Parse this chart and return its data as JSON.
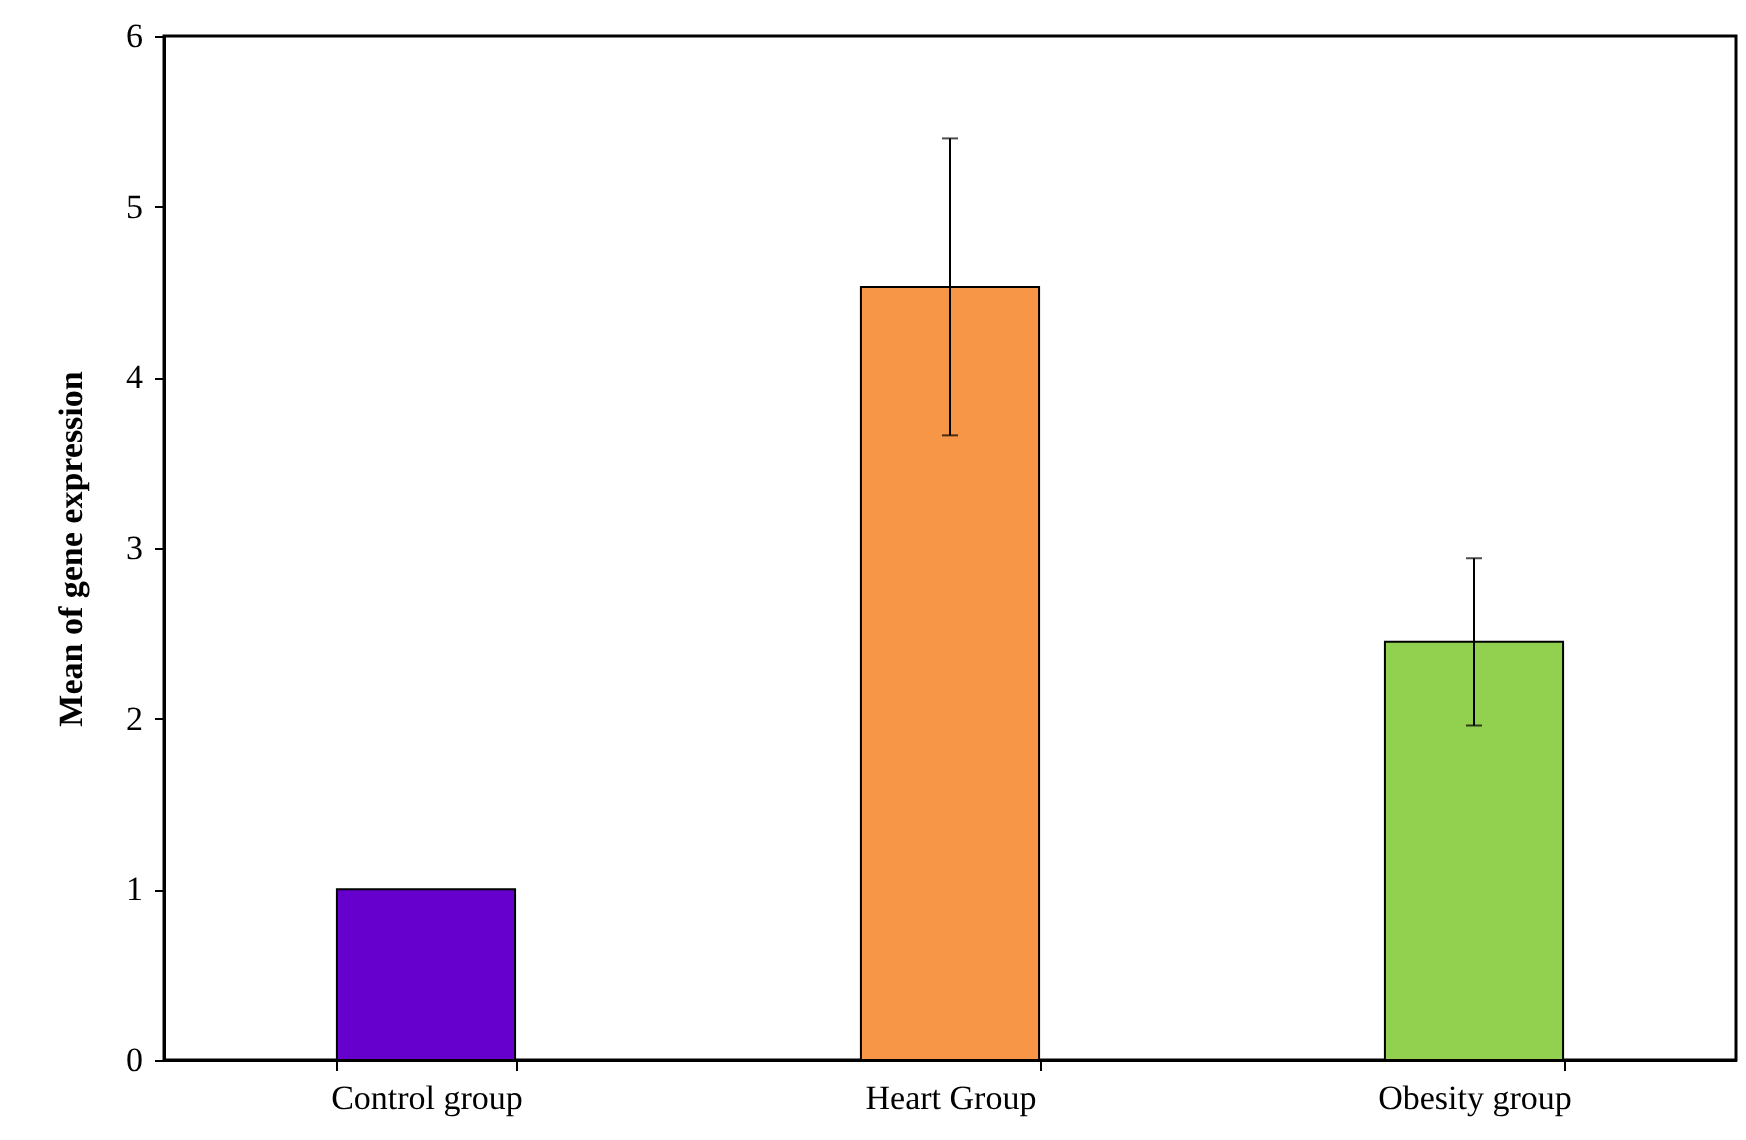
{
  "chart_data": {
    "type": "bar",
    "ylabel": "Mean of gene expression",
    "categories": [
      "Control group",
      "Heart Group",
      "Obesity group"
    ],
    "values": [
      1.0,
      4.53,
      2.45
    ],
    "colors": [
      "#6600cc",
      "#f79646",
      "#92d050"
    ],
    "errors": [
      null,
      0.87,
      0.49
    ],
    "ylim": [
      0,
      6
    ],
    "yticks": [
      0,
      1,
      2,
      3,
      4,
      5,
      6
    ],
    "grid": false
  }
}
